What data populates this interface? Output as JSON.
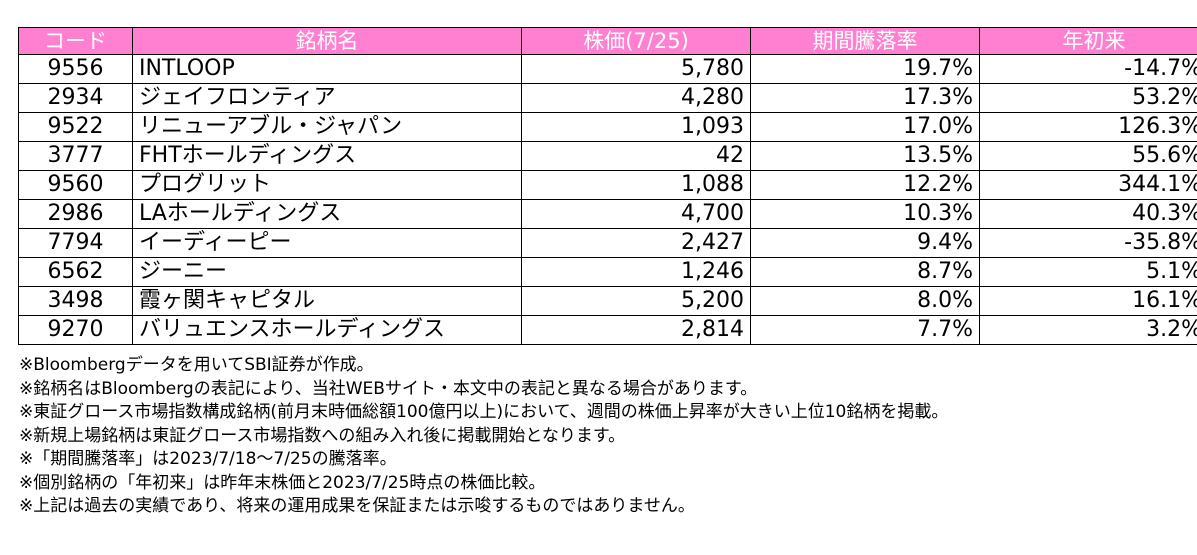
{
  "table": {
    "headers": [
      "コード",
      "銘柄名",
      "株価(7/25)",
      "期間騰落率",
      "年初来"
    ],
    "rows": [
      [
        "9556",
        "INTLOOP",
        "5,780",
        "19.7%",
        "-14.7%"
      ],
      [
        "2934",
        "ジェイフロンティア",
        "4,280",
        "17.3%",
        "53.2%"
      ],
      [
        "9522",
        "リニューアブル・ジャパン",
        "1,093",
        "17.0%",
        "126.3%"
      ],
      [
        "3777",
        "FHTホールディングス",
        "42",
        "13.5%",
        "55.6%"
      ],
      [
        "9560",
        "プログリット",
        "1,088",
        "12.2%",
        "344.1%"
      ],
      [
        "2986",
        "LAホールディングス",
        "4,700",
        "10.3%",
        "40.3%"
      ],
      [
        "7794",
        "イーディーピー",
        "2,427",
        "9.4%",
        "-35.8%"
      ],
      [
        "6562",
        "ジーニー",
        "1,246",
        "8.7%",
        "5.1%"
      ],
      [
        "3498",
        "霞ヶ関キャピタル",
        "5,200",
        "8.0%",
        "16.1%"
      ],
      [
        "9270",
        "バリュエンスホールディングス",
        "2,814",
        "7.7%",
        "3.2%"
      ]
    ]
  },
  "notes": [
    "※Bloombergデータを用いてSBI証券が作成。",
    "※銘柄名はBloombergの表記により、当社WEBサイト・本文中の表記と異なる場合があります。",
    "※東証グロース市場指数構成銘柄(前月末時価総額100億円以上)において、週間の株価上昇率が大きい上位10銘柄を掲載。",
    "※新規上場銘柄は東証グロース市場指数への組み入れ後に掲載開始となります。",
    "※「期間騰落率」は2023/7/18～7/25の騰落率。",
    "※個別銘柄の「年初来」は昨年末株価と2023/7/25時点の株価比較。",
    "※上記は過去の実績であり、将来の運用成果を保証または示唆するものではありません。"
  ],
  "colors": {
    "header_bg": "#ff80d0",
    "header_text": "#ffffff",
    "border": "#000000"
  }
}
